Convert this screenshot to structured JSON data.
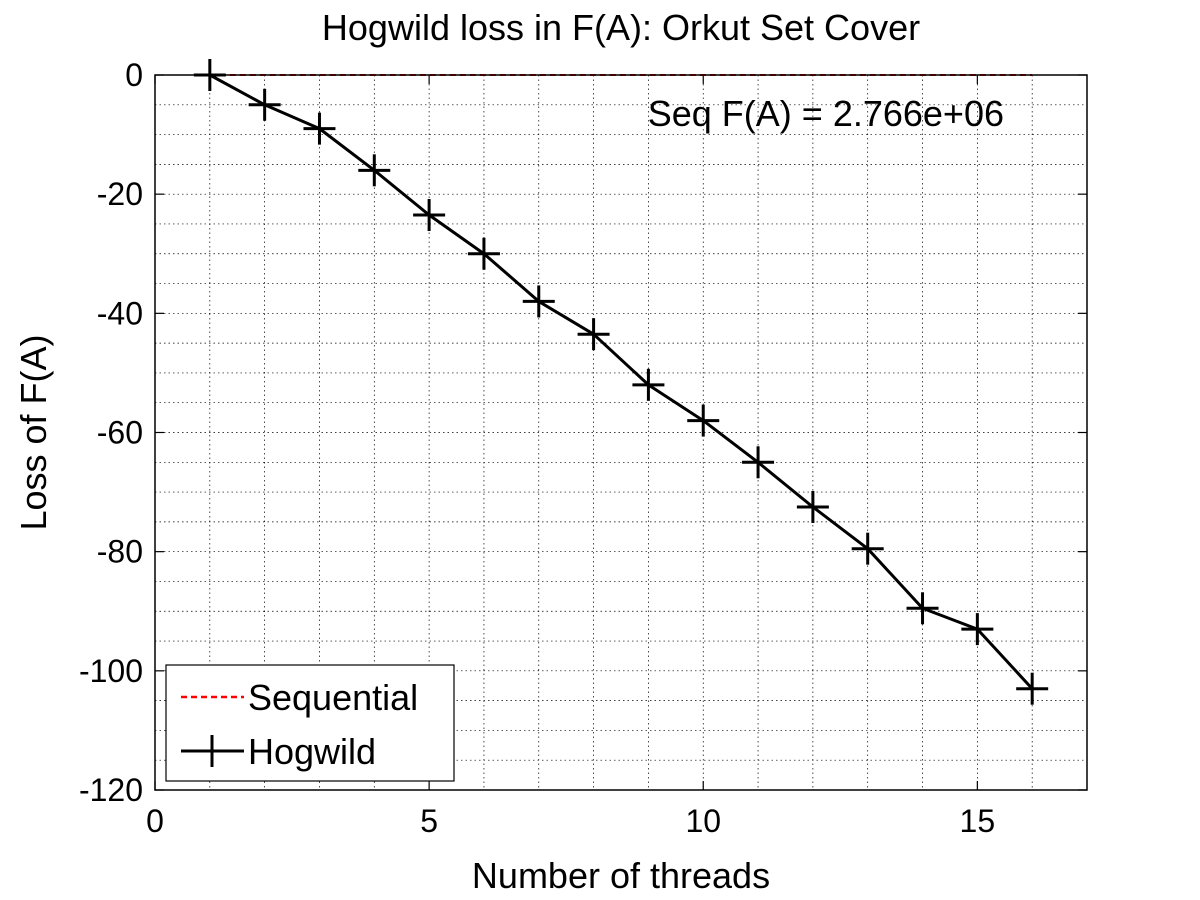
{
  "chart_data": {
    "type": "line",
    "title": "Hogwild loss in F(A): Orkut Set Cover",
    "xlabel": "Number of threads",
    "ylabel": "Loss of F(A)",
    "xlim": [
      0,
      17
    ],
    "ylim": [
      -120,
      0
    ],
    "xticks": [
      0,
      5,
      10,
      15
    ],
    "yticks": [
      0,
      -20,
      -40,
      -60,
      -80,
      -100,
      -120
    ],
    "grid": true,
    "minor_grid": true,
    "legend_position": "bottom-left",
    "annotation": "Seq F(A) = 2.766e+06",
    "series": [
      {
        "name": "Sequential",
        "color": "#ff0000",
        "style": "dashed",
        "marker": "none",
        "x": [
          1,
          16
        ],
        "values": [
          0,
          0
        ]
      },
      {
        "name": "Hogwild",
        "color": "#000000",
        "style": "solid",
        "marker": "plus",
        "x": [
          1,
          2,
          3,
          4,
          5,
          6,
          7,
          8,
          9,
          10,
          11,
          12,
          13,
          14,
          15,
          16
        ],
        "values": [
          0,
          -5,
          -9,
          -16,
          -23.5,
          -30,
          -38,
          -43.5,
          -52,
          -58,
          -65,
          -72.5,
          -79.5,
          -89.5,
          -93,
          -103
        ]
      }
    ]
  }
}
